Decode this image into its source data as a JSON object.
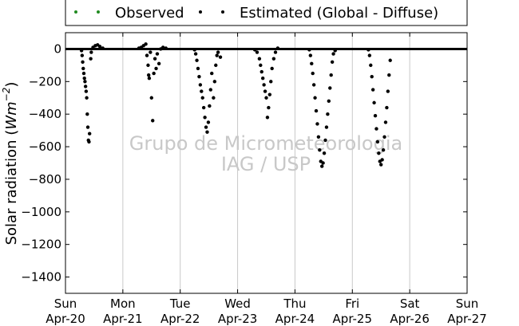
{
  "chart_data": {
    "type": "scatter",
    "title": "",
    "ylabel": "Solar radiation (W m^-2)",
    "ylabel_parts": {
      "text": "Solar radiation",
      "unit_open": "(",
      "unit": "Wm",
      "unit_exp": "−2",
      "unit_close": ")"
    },
    "xlabel": "",
    "ylim": [
      -1500,
      100
    ],
    "yticks": [
      0,
      -200,
      -400,
      -600,
      -800,
      -1000,
      -1200,
      -1400
    ],
    "xlim": [
      0,
      7
    ],
    "xticks": [
      {
        "x": 0,
        "day": "Sun",
        "date": "Apr-20"
      },
      {
        "x": 1,
        "day": "Mon",
        "date": "Apr-21"
      },
      {
        "x": 2,
        "day": "Tue",
        "date": "Apr-22"
      },
      {
        "x": 3,
        "day": "Wed",
        "date": "Apr-23"
      },
      {
        "x": 4,
        "day": "Thu",
        "date": "Apr-24"
      },
      {
        "x": 5,
        "day": "Fri",
        "date": "Apr-25"
      },
      {
        "x": 6,
        "day": "Sat",
        "date": "Apr-26"
      },
      {
        "x": 7,
        "day": "Sun",
        "date": "Apr-27"
      }
    ],
    "grid": "vertical",
    "legend_placement": "top, outside",
    "series": [
      {
        "name": "Observed",
        "color": "#228B22",
        "points": []
      },
      {
        "name": "Estimated (Global - Diffuse)",
        "color": "#000000",
        "baseline_value": 0,
        "days": [
          {
            "day": 0,
            "points": [
              [
                0.28,
                -10
              ],
              [
                0.29,
                -40
              ],
              [
                0.3,
                -80
              ],
              [
                0.31,
                -120
              ],
              [
                0.32,
                -150
              ],
              [
                0.33,
                -180
              ],
              [
                0.34,
                -200
              ],
              [
                0.35,
                -230
              ],
              [
                0.36,
                -260
              ],
              [
                0.37,
                -300
              ],
              [
                0.38,
                -400
              ],
              [
                0.39,
                -480
              ],
              [
                0.4,
                -560
              ],
              [
                0.41,
                -570
              ],
              [
                0.42,
                -520
              ],
              [
                0.44,
                -60
              ],
              [
                0.45,
                -20
              ],
              [
                0.48,
                10
              ],
              [
                0.52,
                20
              ],
              [
                0.56,
                25
              ],
              [
                0.6,
                15
              ],
              [
                0.65,
                5
              ]
            ]
          },
          {
            "day": 1,
            "points": [
              [
                1.28,
                5
              ],
              [
                1.32,
                10
              ],
              [
                1.36,
                20
              ],
              [
                1.4,
                30
              ],
              [
                1.42,
                -40
              ],
              [
                1.44,
                -100
              ],
              [
                1.45,
                -160
              ],
              [
                1.46,
                -180
              ],
              [
                1.48,
                -20
              ],
              [
                1.5,
                -300
              ],
              [
                1.52,
                -440
              ],
              [
                1.54,
                -150
              ],
              [
                1.56,
                -60
              ],
              [
                1.58,
                -120
              ],
              [
                1.6,
                -30
              ],
              [
                1.63,
                -90
              ],
              [
                1.66,
                0
              ],
              [
                1.7,
                10
              ],
              [
                1.75,
                5
              ]
            ]
          },
          {
            "day": 2,
            "points": [
              [
                2.25,
                -5
              ],
              [
                2.27,
                -30
              ],
              [
                2.29,
                -70
              ],
              [
                2.31,
                -120
              ],
              [
                2.33,
                -170
              ],
              [
                2.35,
                -220
              ],
              [
                2.37,
                -260
              ],
              [
                2.39,
                -300
              ],
              [
                2.41,
                -360
              ],
              [
                2.43,
                -420
              ],
              [
                2.45,
                -480
              ],
              [
                2.47,
                -510
              ],
              [
                2.49,
                -450
              ],
              [
                2.51,
                -350
              ],
              [
                2.53,
                -250
              ],
              [
                2.55,
                -150
              ],
              [
                2.58,
                -300
              ],
              [
                2.6,
                -200
              ],
              [
                2.62,
                -100
              ],
              [
                2.64,
                -40
              ],
              [
                2.66,
                -20
              ],
              [
                2.7,
                -50
              ]
            ]
          },
          {
            "day": 3,
            "points": [
              [
                3.3,
                -5
              ],
              [
                3.34,
                -20
              ],
              [
                3.38,
                -60
              ],
              [
                3.4,
                -100
              ],
              [
                3.42,
                -140
              ],
              [
                3.44,
                -180
              ],
              [
                3.46,
                -220
              ],
              [
                3.48,
                -260
              ],
              [
                3.5,
                -300
              ],
              [
                3.52,
                -420
              ],
              [
                3.54,
                -360
              ],
              [
                3.56,
                -280
              ],
              [
                3.58,
                -200
              ],
              [
                3.6,
                -120
              ],
              [
                3.63,
                -60
              ],
              [
                3.66,
                -20
              ],
              [
                3.7,
                5
              ]
            ]
          },
          {
            "day": 4,
            "points": [
              [
                4.25,
                -5
              ],
              [
                4.27,
                -40
              ],
              [
                4.29,
                -90
              ],
              [
                4.31,
                -150
              ],
              [
                4.33,
                -220
              ],
              [
                4.35,
                -300
              ],
              [
                4.37,
                -380
              ],
              [
                4.39,
                -460
              ],
              [
                4.41,
                -540
              ],
              [
                4.43,
                -620
              ],
              [
                4.45,
                -690
              ],
              [
                4.47,
                -720
              ],
              [
                4.49,
                -700
              ],
              [
                4.51,
                -640
              ],
              [
                4.53,
                -560
              ],
              [
                4.55,
                -480
              ],
              [
                4.57,
                -400
              ],
              [
                4.59,
                -320
              ],
              [
                4.61,
                -240
              ],
              [
                4.63,
                -160
              ],
              [
                4.65,
                -80
              ],
              [
                4.67,
                -30
              ],
              [
                4.7,
                -10
              ]
            ]
          },
          {
            "day": 5,
            "points": [
              [
                5.28,
                -5
              ],
              [
                5.3,
                -40
              ],
              [
                5.32,
                -100
              ],
              [
                5.34,
                -170
              ],
              [
                5.36,
                -250
              ],
              [
                5.38,
                -330
              ],
              [
                5.4,
                -410
              ],
              [
                5.42,
                -490
              ],
              [
                5.44,
                -570
              ],
              [
                5.46,
                -640
              ],
              [
                5.48,
                -690
              ],
              [
                5.5,
                -710
              ],
              [
                5.52,
                -680
              ],
              [
                5.54,
                -620
              ],
              [
                5.56,
                -540
              ],
              [
                5.58,
                -450
              ],
              [
                5.6,
                -360
              ],
              [
                5.62,
                -260
              ],
              [
                5.64,
                -160
              ],
              [
                5.66,
                -70
              ]
            ]
          }
        ]
      }
    ],
    "watermark": [
      "Grupo de Micrometeorologia",
      "IAG / USP"
    ]
  }
}
